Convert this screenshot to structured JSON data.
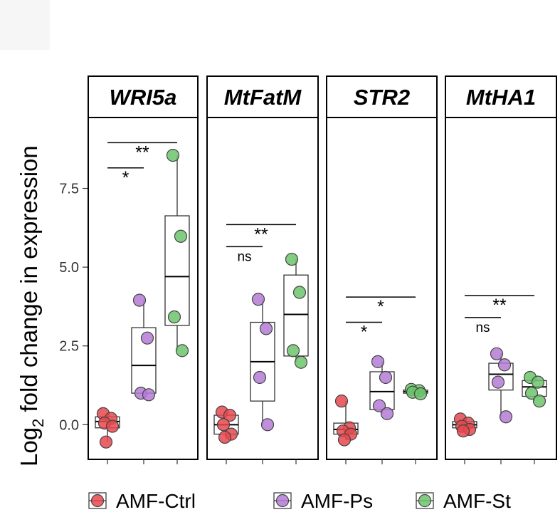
{
  "chart_data": {
    "type": "box",
    "ylabel_main": "Log",
    "ylabel_sub": "2",
    "ylabel_rest": " fold change in expression",
    "ylim": [
      -1.1,
      9.75
    ],
    "yticks": [
      0.0,
      2.5,
      5.0,
      7.5
    ],
    "ytick_labels": [
      "0.0",
      "2.5",
      "5.0",
      "7.5"
    ],
    "groups": [
      "AMF-Ctrl",
      "AMF-Ps",
      "AMF-St"
    ],
    "colors": {
      "AMF-Ctrl": "#e5484d",
      "AMF-Ps": "#b57bd6",
      "AMF-St": "#6cc46c"
    },
    "legend": {
      "position": "bottom",
      "entries": [
        "AMF-Ctrl",
        "AMF-Ps",
        "AMF-St"
      ]
    },
    "facets": [
      {
        "title": "WRI5a",
        "series": [
          {
            "group": "AMF-Ctrl",
            "points": [
              0.35,
              0.2,
              0.05,
              -0.05,
              -0.55
            ],
            "box": {
              "q1": -0.1,
              "median": 0.1,
              "q3": 0.25,
              "whisker_low": -0.55,
              "whisker_high": 0.35
            }
          },
          {
            "group": "AMF-Ps",
            "points": [
              3.95,
              2.75,
              1.0,
              0.95
            ],
            "box": {
              "q1": 1.0,
              "median": 1.88,
              "q3": 3.08,
              "whisker_low": 0.95,
              "whisker_high": 3.95
            }
          },
          {
            "group": "AMF-St",
            "points": [
              8.55,
              5.98,
              3.42,
              2.35
            ],
            "box": {
              "q1": 3.15,
              "median": 4.7,
              "q3": 6.63,
              "whisker_low": 2.35,
              "whisker_high": 8.55
            }
          }
        ],
        "comparisons": [
          {
            "from": "AMF-Ctrl",
            "to": "AMF-Ps",
            "label": "*",
            "y": 8.15
          },
          {
            "from": "AMF-Ctrl",
            "to": "AMF-St",
            "label": "**",
            "y": 8.95
          }
        ]
      },
      {
        "title": "MtFatM",
        "series": [
          {
            "group": "AMF-Ctrl",
            "points": [
              0.4,
              0.3,
              0.0,
              -0.3,
              -0.4
            ],
            "box": {
              "q1": -0.3,
              "median": 0.0,
              "q3": 0.3,
              "whisker_low": -0.4,
              "whisker_high": 0.4
            }
          },
          {
            "group": "AMF-Ps",
            "points": [
              3.98,
              3.05,
              1.5,
              0.0
            ],
            "box": {
              "q1": 0.75,
              "median": 2.0,
              "q3": 3.25,
              "whisker_low": 0.0,
              "whisker_high": 3.98
            }
          },
          {
            "group": "AMF-St",
            "points": [
              5.25,
              4.2,
              2.35,
              1.98
            ],
            "box": {
              "q1": 2.18,
              "median": 3.5,
              "q3": 4.75,
              "whisker_low": 1.98,
              "whisker_high": 5.25
            }
          }
        ],
        "comparisons": [
          {
            "from": "AMF-Ctrl",
            "to": "AMF-Ps",
            "label": "ns",
            "y": 5.65
          },
          {
            "from": "AMF-Ctrl",
            "to": "AMF-St",
            "label": "**",
            "y": 6.35
          }
        ]
      },
      {
        "title": "STR2",
        "series": [
          {
            "group": "AMF-Ctrl",
            "points": [
              0.75,
              -0.1,
              -0.2,
              -0.3,
              -0.48
            ],
            "box": {
              "q1": -0.3,
              "median": -0.15,
              "q3": 0.05,
              "whisker_low": -0.48,
              "whisker_high": 0.75
            }
          },
          {
            "group": "AMF-Ps",
            "points": [
              2.0,
              1.5,
              0.6,
              0.35
            ],
            "box": {
              "q1": 0.48,
              "median": 1.05,
              "q3": 1.68,
              "whisker_low": 0.35,
              "whisker_high": 2.0
            }
          },
          {
            "group": "AMF-St",
            "points": [
              1.12,
              1.08,
              1.03,
              0.98
            ],
            "box": {
              "q1": 1.0,
              "median": 1.05,
              "q3": 1.1,
              "whisker_low": 0.98,
              "whisker_high": 1.12
            }
          }
        ],
        "comparisons": [
          {
            "from": "AMF-Ctrl",
            "to": "AMF-Ps",
            "label": "*",
            "y": 3.25
          },
          {
            "from": "AMF-Ctrl",
            "to": "AMF-St",
            "label": "*",
            "y": 4.05
          }
        ]
      },
      {
        "title": "MtHA1",
        "series": [
          {
            "group": "AMF-Ctrl",
            "points": [
              0.18,
              0.05,
              -0.05,
              -0.15,
              -0.2
            ],
            "box": {
              "q1": -0.1,
              "median": 0.0,
              "q3": 0.1,
              "whisker_low": -0.2,
              "whisker_high": 0.18
            }
          },
          {
            "group": "AMF-Ps",
            "points": [
              2.25,
              1.9,
              1.35,
              0.25
            ],
            "box": {
              "q1": 1.1,
              "median": 1.6,
              "q3": 1.95,
              "whisker_low": 0.25,
              "whisker_high": 2.25
            }
          },
          {
            "group": "AMF-St",
            "points": [
              1.5,
              1.35,
              1.0,
              0.75
            ],
            "box": {
              "q1": 0.9,
              "median": 1.2,
              "q3": 1.4,
              "whisker_low": 0.75,
              "whisker_high": 1.5
            }
          }
        ],
        "comparisons": [
          {
            "from": "AMF-Ctrl",
            "to": "AMF-Ps",
            "label": "ns",
            "y": 3.4
          },
          {
            "from": "AMF-Ctrl",
            "to": "AMF-St",
            "label": "**",
            "y": 4.1
          }
        ]
      }
    ]
  }
}
